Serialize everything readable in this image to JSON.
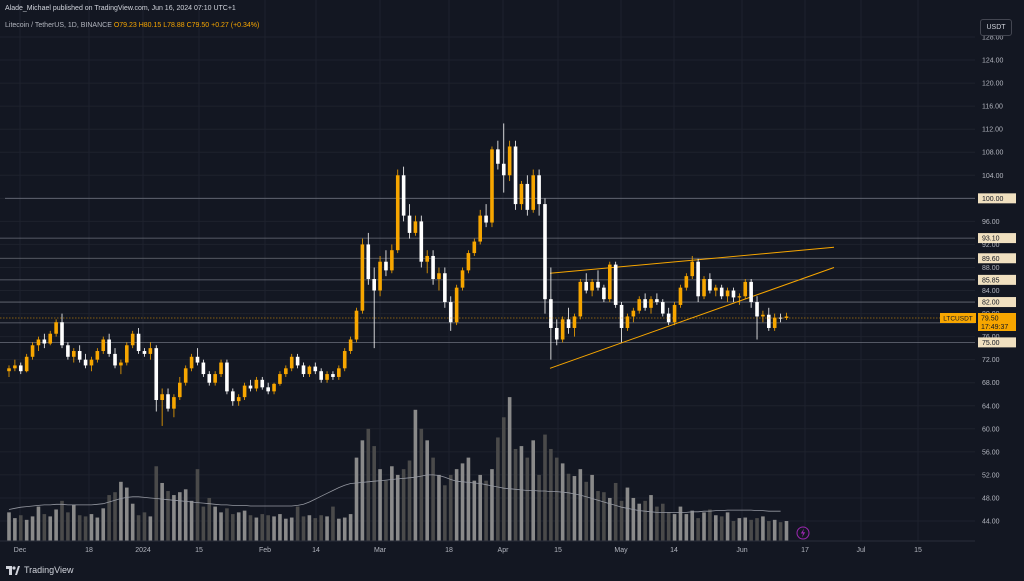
{
  "header": {
    "published": "Alade_Michael published on TradingView.com, Jun 16, 2024 07:10 UTC+1",
    "symbol_line": "Litecoin / TetherUS, 1D, BINANCE",
    "ohlc": "O79.23 H80.15 L78.88 C79.50 +0.27 (+0.34%)"
  },
  "currency_button": "USDT",
  "footer": {
    "brand": "TradingView"
  },
  "colors": {
    "background": "#131722",
    "up_candle": "#f7a600",
    "down_candle": "#ffffff",
    "pattern_line": "#f7a600",
    "level_line": "#6b6f7a",
    "volume_up": "#8a8a8a",
    "volume_down": "#4a4a4a"
  },
  "chart_data": {
    "type": "candlestick",
    "symbol": "LTCUSDT",
    "timeframe": "1D",
    "exchange": "BINANCE",
    "y_axis": {
      "ticks": [
        "128.00",
        "124.00",
        "120.00",
        "116.00",
        "112.00",
        "108.00",
        "104.00",
        "100.00",
        "96.00",
        "92.00",
        "88.00",
        "84.00",
        "80.00",
        "76.00",
        "72.00",
        "68.00",
        "64.00",
        "60.00",
        "56.00",
        "52.00",
        "48.00",
        "44.00"
      ],
      "ylim": [
        42,
        128
      ]
    },
    "x_axis": {
      "ticks": [
        "Dec",
        "18",
        "2024",
        "15",
        "Feb",
        "14",
        "Mar",
        "18",
        "Apr",
        "15",
        "May",
        "14",
        "Jun",
        "17",
        "Jul",
        "15"
      ]
    },
    "horizontal_levels": [
      {
        "label": "100.00",
        "value": 100.0
      },
      {
        "label": "93.10",
        "value": 93.1
      },
      {
        "label": "89.60",
        "value": 89.6
      },
      {
        "label": "85.85",
        "value": 85.85
      },
      {
        "label": "82.00",
        "value": 82.0
      },
      {
        "label": "78.38",
        "value": 78.38
      },
      {
        "label": "75.00",
        "value": 75.0
      }
    ],
    "price_label": {
      "symbol": "LTCUSDT",
      "price": "79.50",
      "countdown": "17:49:37",
      "value": 79.5
    },
    "trendlines": [
      {
        "name": "upper",
        "from": {
          "x": "Apr 11",
          "y": 87.0
        },
        "to": {
          "x": "Jun 26",
          "y": 91.5
        }
      },
      {
        "name": "lower",
        "from": {
          "x": "Apr 11",
          "y": 70.5
        },
        "to": {
          "x": "Jun 26",
          "y": 88.0
        }
      }
    ],
    "volume_ma_label": "volume",
    "candles": [
      [
        70,
        71,
        69,
        70.5
      ],
      [
        70.5,
        72,
        70,
        71
      ],
      [
        71,
        71.5,
        69.5,
        70
      ],
      [
        70,
        73,
        69.8,
        72.5
      ],
      [
        72.5,
        75,
        72,
        74.5
      ],
      [
        74.5,
        76,
        73.5,
        75.5
      ],
      [
        75.5,
        76.5,
        74,
        74.8
      ],
      [
        74.8,
        77,
        74.5,
        76.5
      ],
      [
        76.5,
        79,
        76,
        78.5
      ],
      [
        78.5,
        80,
        74,
        74.5
      ],
      [
        74.5,
        75,
        72,
        72.5
      ],
      [
        72.5,
        74,
        71.5,
        73.5
      ],
      [
        73.5,
        74.5,
        71.5,
        72
      ],
      [
        72,
        73,
        70.5,
        71
      ],
      [
        71,
        72.5,
        70,
        72
      ],
      [
        72,
        74,
        71.5,
        73.5
      ],
      [
        73.5,
        76,
        73,
        75.5
      ],
      [
        75.5,
        76.5,
        72.5,
        73
      ],
      [
        73,
        74,
        70.5,
        71
      ],
      [
        71,
        72,
        69.5,
        71.5
      ],
      [
        71.5,
        75,
        71,
        74.5
      ],
      [
        74.5,
        77,
        74,
        76.5
      ],
      [
        76.5,
        77.5,
        73,
        73.5
      ],
      [
        73.5,
        74,
        72.5,
        73
      ],
      [
        73,
        75,
        72,
        74
      ],
      [
        74,
        74.5,
        63,
        65
      ],
      [
        65,
        67,
        60.5,
        66
      ],
      [
        66,
        67,
        63,
        63.5
      ],
      [
        63.5,
        66,
        62,
        65.5
      ],
      [
        65.5,
        69,
        65,
        68
      ],
      [
        68,
        71,
        67.5,
        70.5
      ],
      [
        70.5,
        73,
        70,
        72.5
      ],
      [
        72.5,
        74,
        71,
        71.5
      ],
      [
        71.5,
        72,
        69,
        69.5
      ],
      [
        69.5,
        70,
        67.5,
        68
      ],
      [
        68,
        70,
        67.5,
        69.5
      ],
      [
        69.5,
        72,
        69,
        71.5
      ],
      [
        71.5,
        72,
        66,
        66.5
      ],
      [
        66.5,
        67,
        64,
        64.8
      ],
      [
        64.8,
        66,
        64,
        65.5
      ],
      [
        65.5,
        68,
        65,
        67.5
      ],
      [
        67.5,
        68.5,
        66.5,
        67
      ],
      [
        67,
        69,
        66.5,
        68.5
      ],
      [
        68.5,
        69,
        66.8,
        67.2
      ],
      [
        67.2,
        68,
        66,
        66.5
      ],
      [
        66.5,
        68,
        66,
        67.8
      ],
      [
        67.8,
        70,
        67.5,
        69.5
      ],
      [
        69.5,
        71,
        69,
        70.5
      ],
      [
        70.5,
        73,
        70,
        72.5
      ],
      [
        72.5,
        73,
        70.5,
        71
      ],
      [
        71,
        71.5,
        69,
        69.5
      ],
      [
        69.5,
        71,
        69,
        70.8
      ],
      [
        70.8,
        71.5,
        69.5,
        70
      ],
      [
        70,
        70.5,
        68,
        68.5
      ],
      [
        68.5,
        70,
        68,
        69.5
      ],
      [
        69.5,
        70,
        68.5,
        69
      ],
      [
        69,
        71,
        68.5,
        70.5
      ],
      [
        70.5,
        74,
        70,
        73.5
      ],
      [
        73.5,
        76,
        73,
        75.5
      ],
      [
        75.5,
        81,
        75,
        80.5
      ],
      [
        80.5,
        93,
        80,
        92
      ],
      [
        92,
        94,
        85,
        86
      ],
      [
        86,
        88,
        74,
        84
      ],
      [
        84,
        90,
        83,
        89
      ],
      [
        89,
        91,
        86.5,
        87.5
      ],
      [
        87.5,
        92,
        87,
        91
      ],
      [
        91,
        105,
        90.5,
        104
      ],
      [
        104,
        105.5,
        96,
        97
      ],
      [
        97,
        99,
        93,
        94
      ],
      [
        94,
        97,
        93.5,
        96
      ],
      [
        96,
        97,
        88,
        89
      ],
      [
        89,
        91,
        87,
        90
      ],
      [
        90,
        91,
        85,
        86
      ],
      [
        86,
        88,
        84,
        87
      ],
      [
        87,
        88,
        81,
        82
      ],
      [
        82,
        83,
        77,
        78.5
      ],
      [
        78.5,
        85,
        78,
        84.5
      ],
      [
        84.5,
        88,
        84,
        87.5
      ],
      [
        87.5,
        91,
        87,
        90.5
      ],
      [
        90.5,
        93,
        90,
        92.5
      ],
      [
        92.5,
        98,
        92,
        97
      ],
      [
        97,
        99,
        95,
        95.8
      ],
      [
        95.8,
        109,
        95,
        108.5
      ],
      [
        108.5,
        110,
        105,
        106
      ],
      [
        106,
        113,
        101,
        104
      ],
      [
        104,
        110,
        103,
        109
      ],
      [
        109,
        110,
        98,
        99
      ],
      [
        99,
        103,
        98,
        102.5
      ],
      [
        102.5,
        104,
        97,
        98
      ],
      [
        98,
        105,
        97.5,
        104
      ],
      [
        104,
        105,
        97,
        99
      ],
      [
        99,
        100,
        80,
        82.5
      ],
      [
        82.5,
        88,
        72,
        77.5
      ],
      [
        77.5,
        79,
        74.5,
        75.5
      ],
      [
        75.5,
        79.5,
        75,
        79
      ],
      [
        79,
        81,
        76.5,
        77.5
      ],
      [
        77.5,
        80,
        76,
        79.5
      ],
      [
        79.5,
        86,
        79,
        85.5
      ],
      [
        85.5,
        87,
        83.5,
        84
      ],
      [
        84,
        86,
        83,
        85.5
      ],
      [
        85.5,
        87.5,
        84,
        84.5
      ],
      [
        84.5,
        85,
        82,
        82.5
      ],
      [
        82.5,
        89,
        82,
        88.5
      ],
      [
        88.5,
        89,
        81,
        81.5
      ],
      [
        81.5,
        82,
        75,
        77.5
      ],
      [
        77.5,
        80,
        77,
        79.5
      ],
      [
        79.5,
        81,
        78.5,
        80.5
      ],
      [
        80.5,
        83,
        80,
        82.5
      ],
      [
        82.5,
        83.5,
        80.5,
        81
      ],
      [
        81,
        83,
        80,
        82.5
      ],
      [
        82.5,
        83.5,
        81.5,
        82
      ],
      [
        82,
        82.5,
        79.5,
        80
      ],
      [
        80,
        81,
        78,
        78.5
      ],
      [
        78.5,
        82,
        78,
        81.5
      ],
      [
        81.5,
        85,
        81,
        84.5
      ],
      [
        84.5,
        87,
        84,
        86.5
      ],
      [
        86.5,
        90,
        86,
        89
      ],
      [
        89,
        89.5,
        82,
        83
      ],
      [
        83,
        86.5,
        82.5,
        86
      ],
      [
        86,
        87,
        83.5,
        84
      ],
      [
        84,
        85,
        83,
        84.5
      ],
      [
        84.5,
        85,
        82.5,
        83
      ],
      [
        83,
        84.5,
        82,
        84
      ],
      [
        84,
        84.5,
        82,
        82.8
      ],
      [
        82.8,
        83.5,
        81.5,
        83
      ],
      [
        83,
        86,
        82.5,
        85.5
      ],
      [
        85.5,
        86,
        81,
        82
      ],
      [
        82,
        83,
        75.5,
        79.5
      ],
      [
        79.5,
        80.5,
        78.5,
        79.8
      ],
      [
        79.8,
        81,
        77,
        77.5
      ],
      [
        77.5,
        80,
        77,
        79.3
      ],
      [
        79.3,
        80,
        78.5,
        79.23
      ],
      [
        79.23,
        80.15,
        78.88,
        79.5
      ]
    ],
    "volume_ma": [
      46,
      46.2,
      46.4,
      46.5,
      46.6,
      46.7,
      46.8,
      46.8,
      46.9,
      46.9,
      46.8,
      46.8,
      46.8,
      46.8,
      46.8,
      46.9,
      47,
      47.3,
      47.6,
      47.9,
      48.1,
      48.2,
      48.2,
      48.1,
      48,
      47.9,
      47.8,
      47.7,
      47.6,
      47.5,
      47.4,
      47.3,
      47.2,
      47.1,
      47,
      46.9,
      46.8,
      46.8,
      46.7,
      46.7,
      46.7,
      46.6,
      46.6,
      46.6,
      46.6,
      46.6,
      46.6,
      46.6,
      46.6,
      46.7,
      46.9,
      47.3,
      47.8,
      48.3,
      48.8,
      49.3,
      49.8,
      50.2,
      50.5,
      50.6,
      50.7,
      50.8,
      50.9,
      51,
      51.1,
      51.2,
      51.3,
      51.4,
      51.5,
      51.6,
      51.8,
      52,
      52,
      51.9,
      51.6,
      51.2,
      50.9,
      50.8,
      50.7,
      50.6,
      50.5,
      50.3,
      50.1,
      49.9,
      49.7,
      49.6,
      49.5,
      49.4,
      49.3,
      49.3,
      49.2,
      49.2,
      49.1,
      49.1,
      49,
      48.9,
      48.7,
      48.5,
      48.2,
      47.9,
      47.6,
      47.3,
      47,
      46.7,
      46.4,
      46.2,
      46,
      45.8,
      45.7,
      45.6,
      45.5,
      45.5,
      45.5,
      45.5,
      45.5,
      45.5,
      45.6,
      45.6,
      45.7,
      45.7,
      45.8,
      45.8,
      45.9,
      45.9,
      45.9,
      45.9,
      45.9,
      45.8,
      45.8,
      45.7,
      45.7,
      45.7
    ],
    "volume": [
      45.5,
      44.5,
      45,
      44.2,
      44.8,
      46.5,
      45.2,
      44.8,
      46,
      47.5,
      45.5,
      46.8,
      45,
      44.8,
      45.2,
      44.6,
      46.2,
      48.5,
      49,
      50.8,
      49.8,
      47,
      45,
      45.5,
      44.8,
      53.5,
      50.6,
      49.2,
      48.5,
      49,
      49.5,
      47.5,
      53,
      46.5,
      48,
      46.5,
      45.5,
      46.2,
      45.2,
      45.5,
      45.8,
      45,
      44.6,
      45.2,
      45,
      44.8,
      45.2,
      44.4,
      44.6,
      46.5,
      44.8,
      45,
      44.5,
      45,
      44.8,
      46.5,
      44.4,
      44.6,
      45.2,
      55,
      58,
      60,
      57,
      53,
      51,
      53.5,
      52,
      53,
      54.5,
      63.3,
      60,
      58,
      55,
      52,
      50.2,
      52,
      53,
      54,
      55,
      51,
      52,
      51,
      53,
      58.5,
      62,
      65.5,
      56.5,
      57,
      55,
      58,
      52,
      59,
      56.5,
      55,
      54,
      52.2,
      51.8,
      53,
      50.8,
      52,
      49.2,
      49,
      48,
      50.6,
      47.5,
      49.8,
      48,
      47,
      47.5,
      48.5,
      46.5,
      47,
      45.5,
      45.2,
      46.5,
      45.2,
      45.8,
      44.5,
      45.5,
      46,
      45,
      44.8,
      45.5,
      44,
      44.5,
      44.6,
      44.2,
      44.5,
      44.8,
      44,
      44.2,
      43.8,
      44
    ]
  }
}
